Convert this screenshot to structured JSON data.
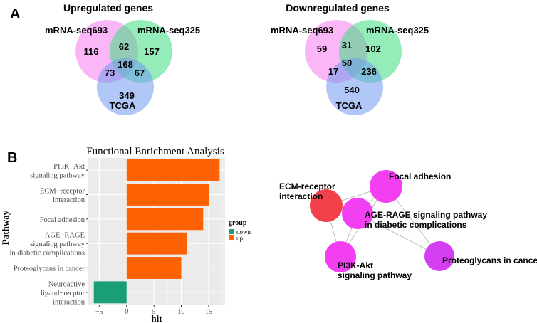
{
  "panel_a": {
    "label": "A",
    "venns": [
      {
        "title": "Upregulated genes",
        "set_labels": [
          "mRNA-seq693",
          "mRNA-seq325",
          "TCGA"
        ],
        "colors": [
          "#f57af0",
          "#3ddf80",
          "#6f99f0"
        ],
        "regions": {
          "only_a": "116",
          "only_b": "157",
          "only_c": "349",
          "ab": "62",
          "ac": "73",
          "bc": "67",
          "abc": "168"
        }
      },
      {
        "title": "Downregulated genes",
        "set_labels": [
          "mRNA-seq693",
          "mRNA-seq325",
          "TCGA"
        ],
        "colors": [
          "#f57af0",
          "#3ddf80",
          "#6f99f0"
        ],
        "regions": {
          "only_a": "59",
          "only_b": "102",
          "only_c": "540",
          "ab": "31",
          "ac": "17",
          "bc": "236",
          "abc": "50"
        }
      }
    ]
  },
  "panel_b": {
    "label": "B",
    "network": {
      "nodes": [
        {
          "id": "focal",
          "label": [
            "Focal adhesion"
          ],
          "color": "#f23ff2"
        },
        {
          "id": "ecm",
          "label": [
            "ECM-receptor",
            "interaction"
          ],
          "color": "#f2414a"
        },
        {
          "id": "age",
          "label": [
            "AGE-RAGE signaling pathway",
            "in diabetic complications"
          ],
          "color": "#f23ff2"
        },
        {
          "id": "pi3k",
          "label": [
            "PI3K-Akt",
            "signaling pathway"
          ],
          "color": "#f23ff2"
        },
        {
          "id": "proteo",
          "label": [
            "Proteoglycans in cancer"
          ],
          "color": "#d43ff2"
        }
      ],
      "edges": [
        [
          "focal",
          "ecm"
        ],
        [
          "focal",
          "age"
        ],
        [
          "focal",
          "pi3k"
        ],
        [
          "focal",
          "proteo"
        ],
        [
          "ecm",
          "age"
        ],
        [
          "ecm",
          "pi3k"
        ],
        [
          "age",
          "pi3k"
        ],
        [
          "age",
          "proteo"
        ]
      ]
    }
  },
  "chart_data": {
    "type": "bar",
    "orientation": "horizontal",
    "title": "Functional Enrichment Analysis",
    "xlabel": "hit",
    "ylabel": "Pathway",
    "xlim": [
      -7,
      18
    ],
    "xticks": [
      -5,
      0,
      5,
      10,
      15
    ],
    "xtick_labels": [
      "−5",
      "0",
      "5",
      "10",
      "15"
    ],
    "grid": true,
    "categories": [
      [
        "PI3K−Akt",
        "signaling pathway"
      ],
      [
        "ECM−receptor",
        "interaction"
      ],
      [
        "Focal adhesion"
      ],
      [
        "AGE−RAGE",
        "signaling pathway",
        "in diabetic complications"
      ],
      [
        "Proteoglycans in cancer"
      ],
      [
        "Neuroactive",
        "ligand−recptor",
        "interaction"
      ]
    ],
    "values": [
      17,
      15,
      14,
      11,
      10,
      -6
    ],
    "groups": [
      "up",
      "up",
      "up",
      "up",
      "up",
      "down"
    ],
    "legend": {
      "title": "group",
      "position": "right",
      "items": [
        {
          "name": "down",
          "color": "#1a9e77"
        },
        {
          "name": "up",
          "color": "#fc6204"
        }
      ]
    }
  }
}
